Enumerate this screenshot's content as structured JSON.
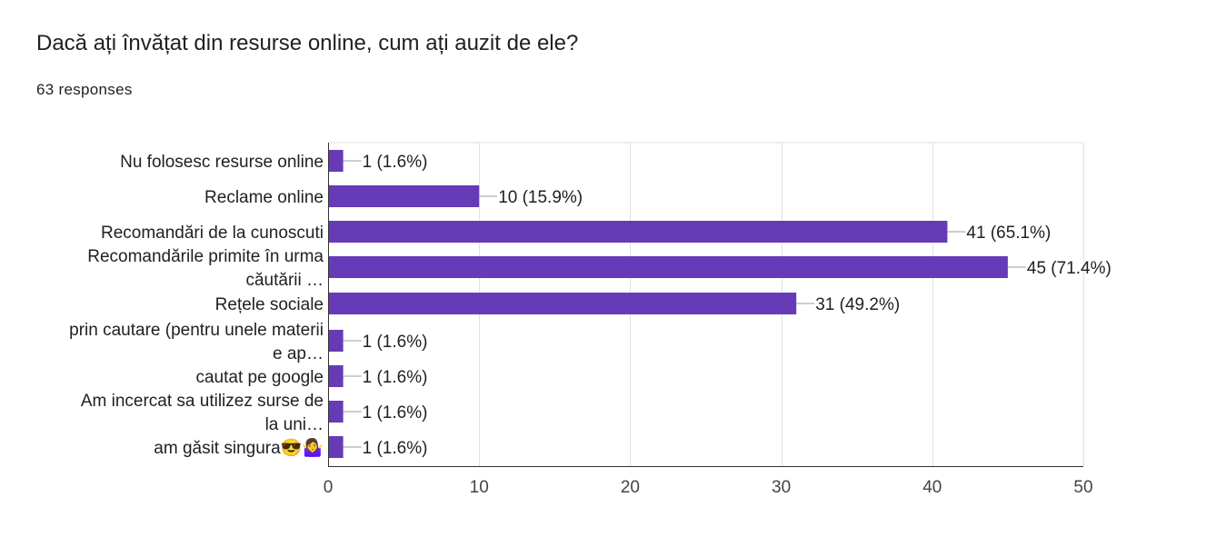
{
  "header": {
    "title": "Dacă ați învățat din resurse online, cum ați auzit de ele?",
    "responses": "63 responses"
  },
  "colors": {
    "bar": "#673ab7",
    "grid": "#e0e0e0",
    "axis": "#333333",
    "leader": "#9e9e9e"
  },
  "chart_data": {
    "type": "bar",
    "orientation": "horizontal",
    "categories": [
      [
        "Nu folosesc resurse online"
      ],
      [
        "Reclame online"
      ],
      [
        "Recomandări de la cunoscuti"
      ],
      [
        "Recomandările primite în urma",
        "căutării …"
      ],
      [
        "Rețele sociale"
      ],
      [
        "prin cautare (pentru unele materii",
        "e ap…"
      ],
      [
        "cautat pe google"
      ],
      [
        "Am incercat sa utilizez surse de",
        "la uni…"
      ],
      [
        "am găsit singura😎🤷‍♀️"
      ]
    ],
    "values": [
      1,
      10,
      41,
      45,
      31,
      1,
      1,
      1,
      1
    ],
    "value_labels": [
      "1 (1.6%)",
      "10 (15.9%)",
      "41 (65.1%)",
      "45 (71.4%)",
      "31 (49.2%)",
      "1 (1.6%)",
      "1 (1.6%)",
      "1 (1.6%)",
      "1 (1.6%)"
    ],
    "xlim": [
      0,
      50
    ],
    "xticks": [
      "0",
      "10",
      "20",
      "30",
      "40",
      "50"
    ],
    "grid": true,
    "legend": "none"
  }
}
